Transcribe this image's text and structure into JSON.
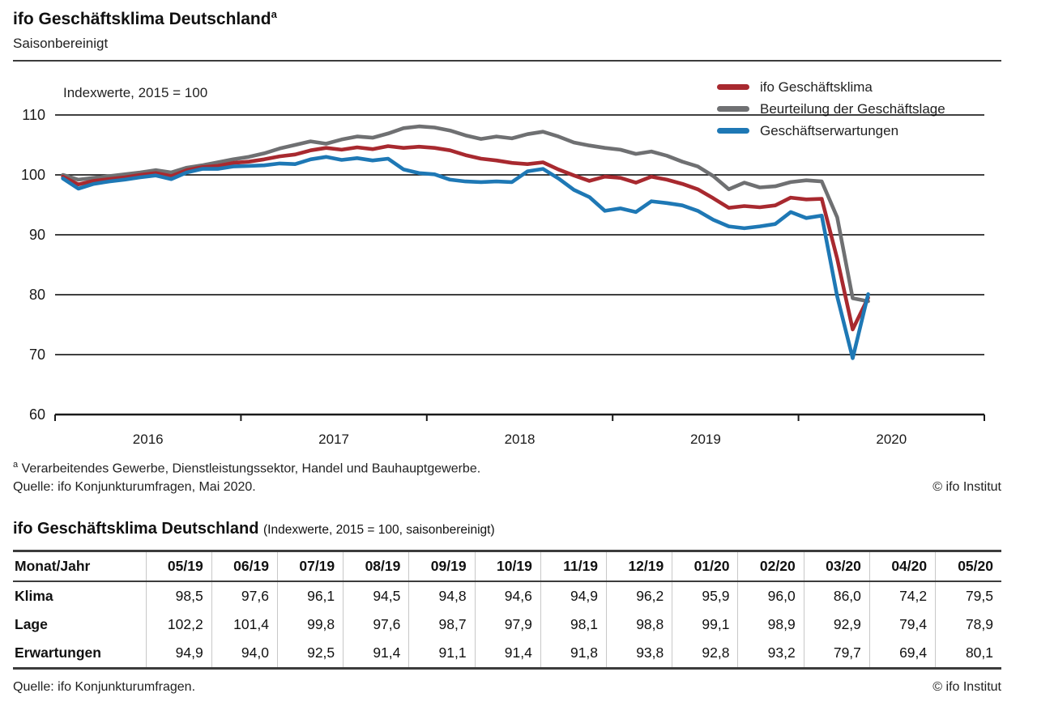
{
  "header": {
    "title": "ifo Geschäftsklima Deutschland",
    "title_superscript": "a",
    "subtitle": "Saisonbereinigt"
  },
  "chart": {
    "axis_note": "Indexwerte, 2015 = 100",
    "legend": [
      {
        "label": "ifo Geschäftsklima",
        "color": "#a8292f"
      },
      {
        "label": "Beurteilung der Geschäftslage",
        "color": "#6f7072"
      },
      {
        "label": "Geschäftserwartungen",
        "color": "#1e78b5"
      }
    ],
    "y_ticks": [
      110,
      100,
      90,
      80,
      70,
      60
    ],
    "x_year_labels": [
      "2016",
      "2017",
      "2018",
      "2019",
      "2020"
    ]
  },
  "chart_data": {
    "type": "line",
    "title": "ifo Geschäftsklima Deutschland (Indexwerte, 2015 = 100, saisonbereinigt)",
    "ylabel": "Indexwerte, 2015 = 100",
    "ylim": [
      60,
      110
    ],
    "grid": "horizontal",
    "legend_position": "top-right",
    "x": [
      "01/16",
      "02/16",
      "03/16",
      "04/16",
      "05/16",
      "06/16",
      "07/16",
      "08/16",
      "09/16",
      "10/16",
      "11/16",
      "12/16",
      "01/17",
      "02/17",
      "03/17",
      "04/17",
      "05/17",
      "06/17",
      "07/17",
      "08/17",
      "09/17",
      "10/17",
      "11/17",
      "12/17",
      "01/18",
      "02/18",
      "03/18",
      "04/18",
      "05/18",
      "06/18",
      "07/18",
      "08/18",
      "09/18",
      "10/18",
      "11/18",
      "12/18",
      "01/19",
      "02/19",
      "03/19",
      "04/19",
      "05/19",
      "06/19",
      "07/19",
      "08/19",
      "09/19",
      "10/19",
      "11/19",
      "12/19",
      "01/20",
      "02/20",
      "03/20",
      "04/20",
      "05/20"
    ],
    "series": [
      {
        "name": "Beurteilung der Geschäftslage",
        "color": "#6f7072",
        "values": [
          100.0,
          99.2,
          99.5,
          99.8,
          100.1,
          100.4,
          100.8,
          100.4,
          101.2,
          101.6,
          102.1,
          102.6,
          103.0,
          103.6,
          104.4,
          105.0,
          105.6,
          105.2,
          105.9,
          106.4,
          106.2,
          106.9,
          107.8,
          108.1,
          107.9,
          107.4,
          106.6,
          106.0,
          106.4,
          106.1,
          106.8,
          107.2,
          106.4,
          105.4,
          104.9,
          104.5,
          104.2,
          103.5,
          103.9,
          103.2,
          102.2,
          101.4,
          99.8,
          97.6,
          98.7,
          97.9,
          98.1,
          98.8,
          99.1,
          98.9,
          92.9,
          79.4,
          78.9
        ]
      },
      {
        "name": "ifo Geschäftsklima",
        "color": "#a8292f",
        "values": [
          99.7,
          98.4,
          99.0,
          99.3,
          99.6,
          100.0,
          100.3,
          99.8,
          100.8,
          101.3,
          101.5,
          102.0,
          102.2,
          102.6,
          103.1,
          103.4,
          104.1,
          104.5,
          104.2,
          104.6,
          104.3,
          104.8,
          104.5,
          104.7,
          104.5,
          104.1,
          103.3,
          102.7,
          102.4,
          102.0,
          101.8,
          102.1,
          100.9,
          99.9,
          99.0,
          99.7,
          99.5,
          98.7,
          99.7,
          99.2,
          98.5,
          97.6,
          96.1,
          94.5,
          94.8,
          94.6,
          94.9,
          96.2,
          95.9,
          96.0,
          86.0,
          74.2,
          79.5
        ]
      },
      {
        "name": "Geschäftserwartungen",
        "color": "#1e78b5",
        "values": [
          99.4,
          97.7,
          98.5,
          98.9,
          99.2,
          99.6,
          99.9,
          99.3,
          100.4,
          101.0,
          101.0,
          101.4,
          101.5,
          101.6,
          101.9,
          101.8,
          102.6,
          103.0,
          102.5,
          102.8,
          102.4,
          102.7,
          100.9,
          100.3,
          100.1,
          99.2,
          98.9,
          98.8,
          98.9,
          98.8,
          100.6,
          101.0,
          99.4,
          97.5,
          96.3,
          94.0,
          94.4,
          93.8,
          95.6,
          95.3,
          94.9,
          94.0,
          92.5,
          91.4,
          91.1,
          91.4,
          91.8,
          93.8,
          92.8,
          93.2,
          79.7,
          69.4,
          80.1
        ]
      }
    ]
  },
  "footnotes": {
    "marker": "a",
    "a_text": "Verarbeitendes Gewerbe, Dienstleistungssektor, Handel und Bauhauptgewerbe.",
    "source": "Quelle: ifo Konjunkturumfragen, Mai 2020.",
    "copyright": "© ifo Institut"
  },
  "table": {
    "title": "ifo Geschäftsklima Deutschland",
    "title_note": "(Indexwerte, 2015 = 100, saisonbereinigt)",
    "header": [
      "Monat/Jahr",
      "05/19",
      "06/19",
      "07/19",
      "08/19",
      "09/19",
      "10/19",
      "11/19",
      "12/19",
      "01/20",
      "02/20",
      "03/20",
      "04/20",
      "05/20"
    ],
    "rows": [
      {
        "label": "Klima",
        "values": [
          "98,5",
          "97,6",
          "96,1",
          "94,5",
          "94,8",
          "94,6",
          "94,9",
          "96,2",
          "95,9",
          "96,0",
          "86,0",
          "74,2",
          "79,5"
        ]
      },
      {
        "label": "Lage",
        "values": [
          "102,2",
          "101,4",
          "99,8",
          "97,6",
          "98,7",
          "97,9",
          "98,1",
          "98,8",
          "99,1",
          "98,9",
          "92,9",
          "79,4",
          "78,9"
        ]
      },
      {
        "label": "Erwartungen",
        "values": [
          "94,9",
          "94,0",
          "92,5",
          "91,4",
          "91,1",
          "91,4",
          "91,8",
          "93,8",
          "92,8",
          "93,2",
          "79,7",
          "69,4",
          "80,1"
        ]
      }
    ],
    "source": "Quelle: ifo Konjunkturumfragen.",
    "copyright": "© ifo Institut"
  }
}
